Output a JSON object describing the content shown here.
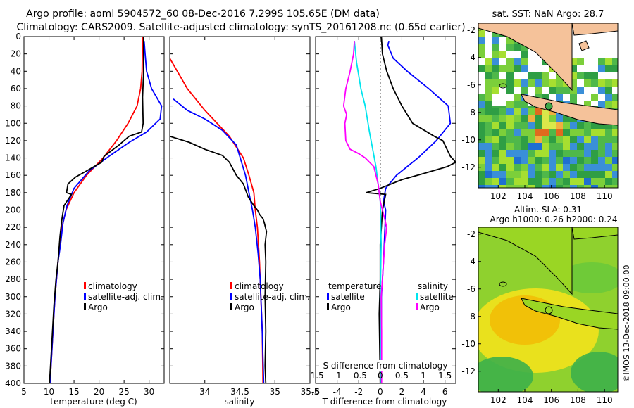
{
  "header": {
    "title_line1": "Argo profile: aoml 5904572_60 08-Dec-2016 7.299S 105.65E (DM data)",
    "title_line2": "Climatology: CARS2009. Satellite-adjusted climatology: synTS_20161208.nc (0.65d earlier)"
  },
  "colors": {
    "climatology": "#ff0000",
    "satellite": "#0000ff",
    "argo": "#000000",
    "sat_diff_T": "#0000ff",
    "sat_diff_S": "#00e5ee",
    "argo_diff_S": "#ff00ff",
    "land": "#f5c29a"
  },
  "chart_data": [
    {
      "type": "line",
      "id": "temperature",
      "xlabel": "temperature (deg C)",
      "xlim": [
        5,
        33
      ],
      "xticks": [
        5,
        10,
        15,
        20,
        25,
        30
      ],
      "ylim": [
        400,
        0
      ],
      "yticks": [
        0,
        20,
        40,
        60,
        80,
        100,
        120,
        140,
        160,
        180,
        200,
        220,
        240,
        260,
        280,
        300,
        320,
        340,
        360,
        380,
        400
      ],
      "legend": [
        "climatology",
        "satellite-adj. clim.",
        "Argo"
      ],
      "series": [
        {
          "name": "climatology",
          "color": "#ff0000",
          "points": [
            [
              28.7,
              0
            ],
            [
              28.6,
              40
            ],
            [
              28.3,
              60
            ],
            [
              27.6,
              80
            ],
            [
              25.8,
              100
            ],
            [
              23.5,
              120
            ],
            [
              20.8,
              140
            ],
            [
              17.5,
              160
            ],
            [
              15.0,
              180
            ],
            [
              13.4,
              200
            ],
            [
              12.6,
              220
            ],
            [
              12.2,
              240
            ],
            [
              11.8,
              260
            ],
            [
              11.5,
              280
            ],
            [
              11.2,
              300
            ],
            [
              11.0,
              320
            ],
            [
              10.8,
              340
            ],
            [
              10.6,
              360
            ],
            [
              10.4,
              380
            ],
            [
              10.2,
              400
            ]
          ]
        },
        {
          "name": "satellite-adj. clim.",
          "color": "#0000ff",
          "points": [
            [
              29.0,
              5
            ],
            [
              29.2,
              20
            ],
            [
              29.5,
              40
            ],
            [
              30.5,
              60
            ],
            [
              32.5,
              80
            ],
            [
              32.2,
              95
            ],
            [
              29.5,
              110
            ],
            [
              26.0,
              122
            ],
            [
              22.0,
              138
            ],
            [
              18.0,
              155
            ],
            [
              15.0,
              175
            ],
            [
              13.6,
              195
            ],
            [
              12.8,
              215
            ],
            [
              12.3,
              240
            ],
            [
              11.8,
              260
            ],
            [
              11.5,
              280
            ],
            [
              11.2,
              300
            ],
            [
              11.0,
              320
            ],
            [
              10.8,
              340
            ],
            [
              10.6,
              360
            ],
            [
              10.4,
              380
            ],
            [
              10.2,
              400
            ]
          ]
        },
        {
          "name": "Argo",
          "color": "#000000",
          "points": [
            [
              28.9,
              0
            ],
            [
              28.9,
              40
            ],
            [
              28.7,
              70
            ],
            [
              28.8,
              100
            ],
            [
              28.5,
              110
            ],
            [
              26.0,
              115
            ],
            [
              24.0,
              125
            ],
            [
              21.0,
              138
            ],
            [
              20.5,
              145
            ],
            [
              17.5,
              155
            ],
            [
              15.3,
              162
            ],
            [
              13.8,
              170
            ],
            [
              13.5,
              180
            ],
            [
              14.5,
              182
            ],
            [
              13.0,
              195
            ],
            [
              12.6,
              210
            ],
            [
              12.2,
              230
            ],
            [
              11.8,
              260
            ],
            [
              11.4,
              280
            ],
            [
              11.0,
              310
            ],
            [
              10.7,
              340
            ],
            [
              10.5,
              360
            ],
            [
              10.3,
              380
            ],
            [
              10.1,
              400
            ]
          ]
        }
      ]
    },
    {
      "type": "line",
      "id": "salinity",
      "xlabel": "salinity",
      "xlim": [
        33.5,
        35.5
      ],
      "xticks": [
        34,
        34.5,
        35,
        35.5
      ],
      "ylim": [
        400,
        0
      ],
      "legend": [
        "climatology",
        "satellite-adj. clim.",
        "Argo"
      ],
      "series": [
        {
          "name": "climatology",
          "color": "#ff0000",
          "points": [
            [
              33.5,
              25
            ],
            [
              33.75,
              60
            ],
            [
              34.0,
              85
            ],
            [
              34.35,
              115
            ],
            [
              34.55,
              140
            ],
            [
              34.63,
              160
            ],
            [
              34.7,
              180
            ],
            [
              34.72,
              200
            ],
            [
              34.75,
              220
            ],
            [
              34.78,
              260
            ],
            [
              34.8,
              300
            ],
            [
              34.82,
              340
            ],
            [
              34.83,
              400
            ]
          ]
        },
        {
          "name": "satellite-adj. clim.",
          "color": "#0000ff",
          "points": [
            [
              33.55,
              72
            ],
            [
              33.75,
              85
            ],
            [
              34.0,
              95
            ],
            [
              34.25,
              108
            ],
            [
              34.45,
              125
            ],
            [
              34.58,
              160
            ],
            [
              34.63,
              180
            ],
            [
              34.68,
              200
            ],
            [
              34.72,
              220
            ],
            [
              34.76,
              250
            ],
            [
              34.79,
              280
            ],
            [
              34.8,
              300
            ],
            [
              34.82,
              340
            ],
            [
              34.84,
              400
            ]
          ]
        },
        {
          "name": "Argo",
          "color": "#000000",
          "points": [
            [
              33.5,
              115
            ],
            [
              33.78,
              122
            ],
            [
              34.0,
              130
            ],
            [
              34.25,
              137
            ],
            [
              34.35,
              145
            ],
            [
              34.45,
              160
            ],
            [
              34.55,
              170
            ],
            [
              34.62,
              185
            ],
            [
              34.7,
              195
            ],
            [
              34.75,
              200
            ],
            [
              34.78,
              205
            ],
            [
              34.83,
              210
            ],
            [
              34.85,
              215
            ],
            [
              34.88,
              225
            ],
            [
              34.86,
              240
            ],
            [
              34.87,
              260
            ],
            [
              34.86,
              300
            ],
            [
              34.87,
              340
            ],
            [
              34.86,
              380
            ],
            [
              34.87,
              400
            ]
          ]
        }
      ]
    },
    {
      "type": "line",
      "id": "difference",
      "xlabel": "T difference from climatology",
      "xlabel_top": "S difference from climatology",
      "xlim": [
        -6,
        7
      ],
      "xticks": [
        -6,
        -4,
        -2,
        0,
        2,
        4,
        6
      ],
      "top_xlim": [
        -1.5,
        1.75
      ],
      "top_xticks": [
        "-1.5",
        "-1",
        "-0.5",
        "0",
        "0.5",
        "1",
        "1.5"
      ],
      "top_xtick_values": [
        -1.5,
        -1,
        -0.5,
        0,
        0.5,
        1,
        1.5
      ],
      "ylim": [
        400,
        0
      ],
      "legend_temperature": {
        "title": "temperature",
        "items": [
          "satellite",
          "Argo"
        ]
      },
      "legend_salinity": {
        "title": "salinity",
        "items": [
          "satellite",
          "Argo"
        ]
      },
      "series": [
        {
          "name": "T satellite",
          "color": "#0000ff",
          "points": [
            [
              0.8,
              5
            ],
            [
              0.7,
              10
            ],
            [
              1.2,
              25
            ],
            [
              2.5,
              40
            ],
            [
              4.5,
              60
            ],
            [
              6.3,
              80
            ],
            [
              6.5,
              100
            ],
            [
              5.2,
              120
            ],
            [
              3.5,
              140
            ],
            [
              1.5,
              160
            ],
            [
              0.5,
              175
            ],
            [
              0.3,
              190
            ],
            [
              0.5,
              200
            ],
            [
              0.3,
              260
            ],
            [
              0.1,
              300
            ],
            [
              0.1,
              400
            ]
          ]
        },
        {
          "name": "T Argo",
          "color": "#000000",
          "points": [
            [
              0.1,
              0
            ],
            [
              0.2,
              20
            ],
            [
              0.6,
              40
            ],
            [
              1.2,
              60
            ],
            [
              2.0,
              80
            ],
            [
              3.0,
              100
            ],
            [
              5.0,
              115
            ],
            [
              5.8,
              120
            ],
            [
              6.5,
              138
            ],
            [
              7.0,
              145
            ],
            [
              6.2,
              150
            ],
            [
              4.0,
              158
            ],
            [
              2.0,
              165
            ],
            [
              0.0,
              175
            ],
            [
              -1.3,
              180
            ],
            [
              0.5,
              182
            ],
            [
              0.2,
              200
            ],
            [
              0.0,
              240
            ],
            [
              0.0,
              280
            ],
            [
              -0.1,
              320
            ],
            [
              0.0,
              400
            ]
          ]
        },
        {
          "name": "S satellite",
          "color": "#00e5ee",
          "points": [
            [
              -0.6,
              5
            ],
            [
              -0.55,
              30
            ],
            [
              -0.45,
              60
            ],
            [
              -0.35,
              80
            ],
            [
              -0.25,
              110
            ],
            [
              -0.1,
              150
            ],
            [
              0.0,
              190
            ],
            [
              0.02,
              240
            ],
            [
              0.0,
              300
            ],
            [
              0.02,
              400
            ]
          ]
        },
        {
          "name": "S Argo",
          "color": "#ff00ff",
          "points": [
            [
              -0.6,
              5
            ],
            [
              -0.62,
              20
            ],
            [
              -0.7,
              40
            ],
            [
              -0.8,
              60
            ],
            [
              -0.85,
              80
            ],
            [
              -0.78,
              90
            ],
            [
              -0.82,
              100
            ],
            [
              -0.8,
              120
            ],
            [
              -0.7,
              130
            ],
            [
              -0.5,
              135
            ],
            [
              -0.35,
              140
            ],
            [
              -0.15,
              150
            ],
            [
              -0.05,
              170
            ],
            [
              0.0,
              190
            ],
            [
              0.1,
              210
            ],
            [
              0.15,
              220
            ],
            [
              0.1,
              240
            ],
            [
              0.05,
              280
            ],
            [
              0.02,
              300
            ],
            [
              0.03,
              340
            ],
            [
              0.03,
              400
            ]
          ]
        }
      ]
    },
    {
      "type": "heatmap",
      "id": "sst_map",
      "title": "sat. SST: NaN Argo: 28.7",
      "xlim": [
        100.5,
        111
      ],
      "ylim": [
        -13.5,
        -1.5
      ],
      "xticks": [
        102,
        104,
        106,
        108,
        110
      ],
      "yticks": [
        -2,
        -4,
        -6,
        -8,
        -10,
        -12
      ],
      "argo_position": [
        105.65,
        -7.299
      ]
    },
    {
      "type": "heatmap",
      "id": "sla_map",
      "title": "Altim. SLA: 0.31",
      "subtitle": "Argo h1000: 0.26 h2000: 0.24",
      "xlim": [
        100.5,
        111
      ],
      "ylim": [
        -13.5,
        -1.5
      ],
      "xticks": [
        102,
        104,
        106,
        108,
        110
      ],
      "yticks": [
        -2,
        -4,
        -6,
        -8,
        -10,
        -12
      ],
      "argo_position": [
        105.65,
        -7.299
      ]
    }
  ],
  "credit": "©IMOS 13-Dec-2018 09:00:00"
}
